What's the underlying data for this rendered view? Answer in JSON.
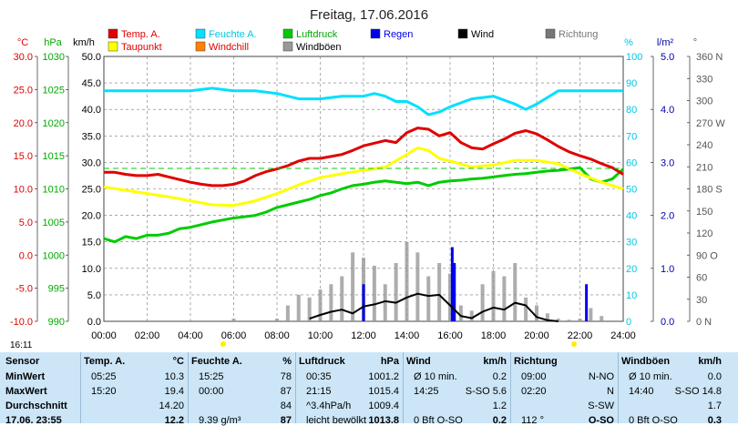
{
  "title": "Freitag, 17.06.2016",
  "time_label": "16:11",
  "legend": [
    {
      "label": "Temp. A.",
      "color": "#e00000"
    },
    {
      "label": "Feuchte A.",
      "color": "#00e0ff"
    },
    {
      "label": "Luftdruck",
      "color": "#00cc00"
    },
    {
      "label": "Regen",
      "color": "#0000ee"
    },
    {
      "label": "Wind",
      "color": "#000000"
    },
    {
      "label": "Richtung",
      "color": "#777777"
    },
    {
      "label": "Taupunkt",
      "color": "#ffff00"
    },
    {
      "label": "Windchill",
      "color": "#ff8000"
    },
    {
      "label": "Windböen",
      "color": "#999999"
    }
  ],
  "axis_titles": {
    "temp": "°C",
    "hpa": "hPa",
    "kmh": "km/h",
    "percent": "%",
    "rain": "l/m²",
    "direction": "°"
  },
  "axes": {
    "temp": {
      "ticks": [
        "30.0",
        "25.0",
        "20.0",
        "15.0",
        "10.0",
        "5.0",
        "0.0",
        "-5.0",
        "-10.0"
      ],
      "color": "#e00000"
    },
    "hpa": {
      "ticks": [
        "1030",
        "1025",
        "1020",
        "1015",
        "1010",
        "1005",
        "1000",
        "995",
        "990"
      ],
      "color": "#00aa00"
    },
    "kmh": {
      "ticks": [
        "50.0",
        "45.0",
        "40.0",
        "35.0",
        "30.0",
        "25.0",
        "20.0",
        "15.0",
        "10.0",
        "5.0",
        "0.0"
      ],
      "color": "#000000"
    },
    "percent": {
      "ticks": [
        "100",
        "90",
        "80",
        "70",
        "60",
        "50",
        "40",
        "30",
        "20",
        "10",
        "0"
      ],
      "color": "#00c8e0"
    },
    "rain": {
      "ticks": [
        "5.0",
        "4.0",
        "3.0",
        "2.0",
        "1.0",
        "0.0"
      ],
      "color": "#0000aa"
    },
    "direction": {
      "ticks": [
        "360 N",
        "330",
        "300",
        "270 W",
        "240",
        "210",
        "180 S",
        "150",
        "120",
        "90 O",
        "60",
        "30",
        "0 N"
      ],
      "color": "#555555"
    },
    "time": {
      "ticks": [
        "00:00",
        "02:00",
        "04:00",
        "06:00",
        "08:00",
        "10:00",
        "12:00",
        "14:00",
        "16:00",
        "18:00",
        "20:00",
        "22:00",
        "24:00"
      ]
    }
  },
  "chart_data": {
    "type": "line",
    "title": "Freitag, 17.06.2016",
    "x_unit": "hours",
    "xlim": [
      0,
      24
    ],
    "series": [
      {
        "name": "Temp. A.",
        "unit": "°C",
        "ylim": [
          -10,
          30
        ],
        "color": "#e00000",
        "x": [
          0,
          0.5,
          1,
          1.5,
          2,
          2.5,
          3,
          3.5,
          4,
          4.5,
          5,
          5.5,
          6,
          6.5,
          7,
          7.5,
          8,
          8.5,
          9,
          9.5,
          10,
          10.5,
          11,
          11.5,
          12,
          12.5,
          13,
          13.5,
          14,
          14.5,
          15,
          15.5,
          16,
          16.5,
          17,
          17.5,
          18,
          18.5,
          19,
          19.5,
          20,
          20.5,
          21,
          21.5,
          22,
          22.5,
          23,
          23.5,
          24
        ],
        "y": [
          12.5,
          12.5,
          12.2,
          12.0,
          12.0,
          12.2,
          11.8,
          11.4,
          11.0,
          10.7,
          10.5,
          10.5,
          10.7,
          11.2,
          12.0,
          12.6,
          13.0,
          13.5,
          14.2,
          14.6,
          14.6,
          14.9,
          15.2,
          15.8,
          16.5,
          16.9,
          17.3,
          17.0,
          18.5,
          19.2,
          19.0,
          18.0,
          18.5,
          17.0,
          16.2,
          16.0,
          16.8,
          17.5,
          18.4,
          18.8,
          18.3,
          17.4,
          16.4,
          15.6,
          15.0,
          14.5,
          13.8,
          13.2,
          12.2
        ]
      },
      {
        "name": "Taupunkt",
        "unit": "°C",
        "ylim": [
          -10,
          30
        ],
        "color": "#ffff00",
        "x": [
          0,
          1,
          2,
          3,
          4,
          5,
          6,
          7,
          8,
          9,
          10,
          11,
          12,
          13,
          14,
          14.5,
          15,
          15.5,
          16,
          17,
          18,
          19,
          20,
          21,
          22,
          23,
          24
        ],
        "y": [
          10.3,
          9.8,
          9.3,
          8.8,
          8.2,
          7.6,
          7.5,
          8.2,
          9.3,
          10.6,
          11.7,
          12.3,
          12.8,
          13.3,
          15.2,
          16.2,
          15.8,
          14.6,
          14.2,
          13.3,
          13.6,
          14.3,
          14.3,
          13.8,
          12.3,
          11.0,
          10.0
        ]
      },
      {
        "name": "Feuchte A.",
        "unit": "%",
        "ylim": [
          0,
          100
        ],
        "color": "#00e0ff",
        "x": [
          0,
          1,
          2,
          3,
          4,
          5,
          6,
          7,
          8,
          9,
          10,
          11,
          12,
          12.5,
          13,
          13.5,
          14,
          14.5,
          15,
          15.5,
          16,
          17,
          18,
          19,
          19.5,
          20,
          21,
          22,
          23,
          24
        ],
        "y": [
          87,
          87,
          87,
          87,
          87,
          88,
          87,
          87,
          86,
          84,
          84,
          85,
          85,
          86,
          85,
          83,
          83,
          81,
          78,
          79,
          81,
          84,
          85,
          82,
          80,
          82,
          87,
          87,
          87,
          87
        ]
      },
      {
        "name": "Luftdruck",
        "unit": "hPa",
        "ylim": [
          990,
          1030
        ],
        "color": "#00cc00",
        "x": [
          0,
          0.5,
          1,
          1.5,
          2,
          2.5,
          3,
          3.5,
          4,
          4.5,
          5,
          5.5,
          6,
          6.5,
          7,
          7.5,
          8,
          8.5,
          9,
          9.5,
          10,
          10.5,
          11,
          11.5,
          12,
          12.5,
          13,
          13.5,
          14,
          14.5,
          15,
          15.5,
          16,
          16.5,
          17,
          17.5,
          18,
          18.5,
          19,
          19.5,
          20,
          20.5,
          21,
          21.5,
          22,
          22.5,
          23,
          23.5,
          24
        ],
        "y": [
          1002.5,
          1002.0,
          1002.8,
          1002.5,
          1003.0,
          1003.0,
          1003.3,
          1004.0,
          1004.2,
          1004.6,
          1005.0,
          1005.3,
          1005.6,
          1005.8,
          1006.0,
          1006.5,
          1007.2,
          1007.6,
          1008.0,
          1008.4,
          1009.0,
          1009.4,
          1010.0,
          1010.5,
          1010.7,
          1011.0,
          1011.2,
          1011.0,
          1010.8,
          1011.0,
          1010.5,
          1011.0,
          1011.2,
          1011.3,
          1011.5,
          1011.6,
          1011.8,
          1012.0,
          1012.2,
          1012.3,
          1012.5,
          1012.7,
          1012.8,
          1013.0,
          1013.2,
          1011.5,
          1011.0,
          1011.5,
          1013.0
        ]
      },
      {
        "name": "Wind",
        "unit": "km/h",
        "ylim": [
          0,
          50
        ],
        "color": "#000000",
        "x": [
          9.5,
          10,
          10.5,
          11,
          11.5,
          12,
          12.5,
          13,
          13.5,
          14,
          14.5,
          15,
          15.5,
          16,
          16.5,
          17,
          17.5,
          18,
          18.5,
          19,
          19.5,
          20,
          20.5,
          21
        ],
        "y": [
          0.5,
          1.2,
          1.8,
          2.2,
          1.5,
          2.8,
          3.2,
          3.8,
          3.5,
          4.5,
          5.2,
          4.8,
          5.0,
          3.0,
          1.0,
          0.6,
          1.8,
          2.6,
          2.2,
          3.5,
          3.0,
          0.8,
          0.2,
          0.0
        ]
      },
      {
        "name": "Windböen",
        "unit": "km/h",
        "ylim": [
          0,
          50
        ],
        "color": "#999999",
        "x": [
          6,
          8,
          8.5,
          9,
          9.5,
          10,
          10.5,
          11,
          11.5,
          12,
          12.5,
          13,
          13.5,
          14,
          14.5,
          15,
          15.5,
          16,
          16.5,
          17,
          17.5,
          18,
          18.5,
          19,
          19.5,
          20,
          20.5,
          21,
          21.5,
          22,
          22.5,
          23
        ],
        "y": [
          0.5,
          0.5,
          3.0,
          5.0,
          4.5,
          6.0,
          7.0,
          8.5,
          13.0,
          12.0,
          10.5,
          7.0,
          11.0,
          15.0,
          13.0,
          8.5,
          11.0,
          9.0,
          3.0,
          2.0,
          7.0,
          9.5,
          8.5,
          11.0,
          4.5,
          3.0,
          1.5,
          0.5,
          0.3,
          0.5,
          2.5,
          1.0
        ]
      },
      {
        "name": "Regen",
        "unit": "l/m²",
        "ylim": [
          0,
          5
        ],
        "type": "bar",
        "color": "#0000ee",
        "x": [
          12.0,
          16.1,
          16.2,
          22.3
        ],
        "y": [
          0.7,
          1.4,
          1.1,
          0.7
        ]
      }
    ],
    "xlabel": "",
    "ylabel": "",
    "grid": true,
    "legend_placement": "top"
  },
  "table": {
    "columns": [
      {
        "header": "Sensor",
        "unit": ""
      },
      {
        "header": "Temp. A.",
        "unit": "°C"
      },
      {
        "header": "Feuchte A.",
        "unit": "%"
      },
      {
        "header": "Luftdruck",
        "unit": "hPa"
      },
      {
        "header": "Wind",
        "unit": "km/h"
      },
      {
        "header": "Richtung",
        "unit": ""
      },
      {
        "header": "Windböen",
        "unit": "km/h"
      }
    ],
    "rows": [
      {
        "label": "MinWert",
        "cells": [
          [
            "05:25",
            "10.3"
          ],
          [
            "15:25",
            "78"
          ],
          [
            "00:35",
            "1001.2"
          ],
          [
            "Ø 10 min.",
            "0.2"
          ],
          [
            "09:00",
            "N-NO"
          ],
          [
            "Ø 10 min.",
            "0.0"
          ]
        ]
      },
      {
        "label": "MaxWert",
        "cells": [
          [
            "15:20",
            "19.4"
          ],
          [
            "00:00",
            "87"
          ],
          [
            "21:15",
            "1015.4"
          ],
          [
            "14:25",
            "S-SO 5.6"
          ],
          [
            "02:20",
            "N"
          ],
          [
            "14:40",
            "S-SO 14.8"
          ]
        ]
      },
      {
        "label": "Durchschnitt",
        "cells": [
          [
            "",
            "14.20"
          ],
          [
            "",
            "84"
          ],
          [
            "^3.4hPa/h",
            "1009.4"
          ],
          [
            "",
            "1.2"
          ],
          [
            "",
            "S-SW"
          ],
          [
            "",
            "1.7"
          ]
        ]
      },
      {
        "label": "17.06. 23:55",
        "cells": [
          [
            "",
            "12.2"
          ],
          [
            "9.39 g/m³",
            "87"
          ],
          [
            "leicht bewölkt",
            "1013.8"
          ],
          [
            "0 Bft O-SO",
            "0.2"
          ],
          [
            "112 °",
            "O-SO"
          ],
          [
            "0 Bft O-SO",
            "0.3"
          ]
        ]
      }
    ]
  }
}
